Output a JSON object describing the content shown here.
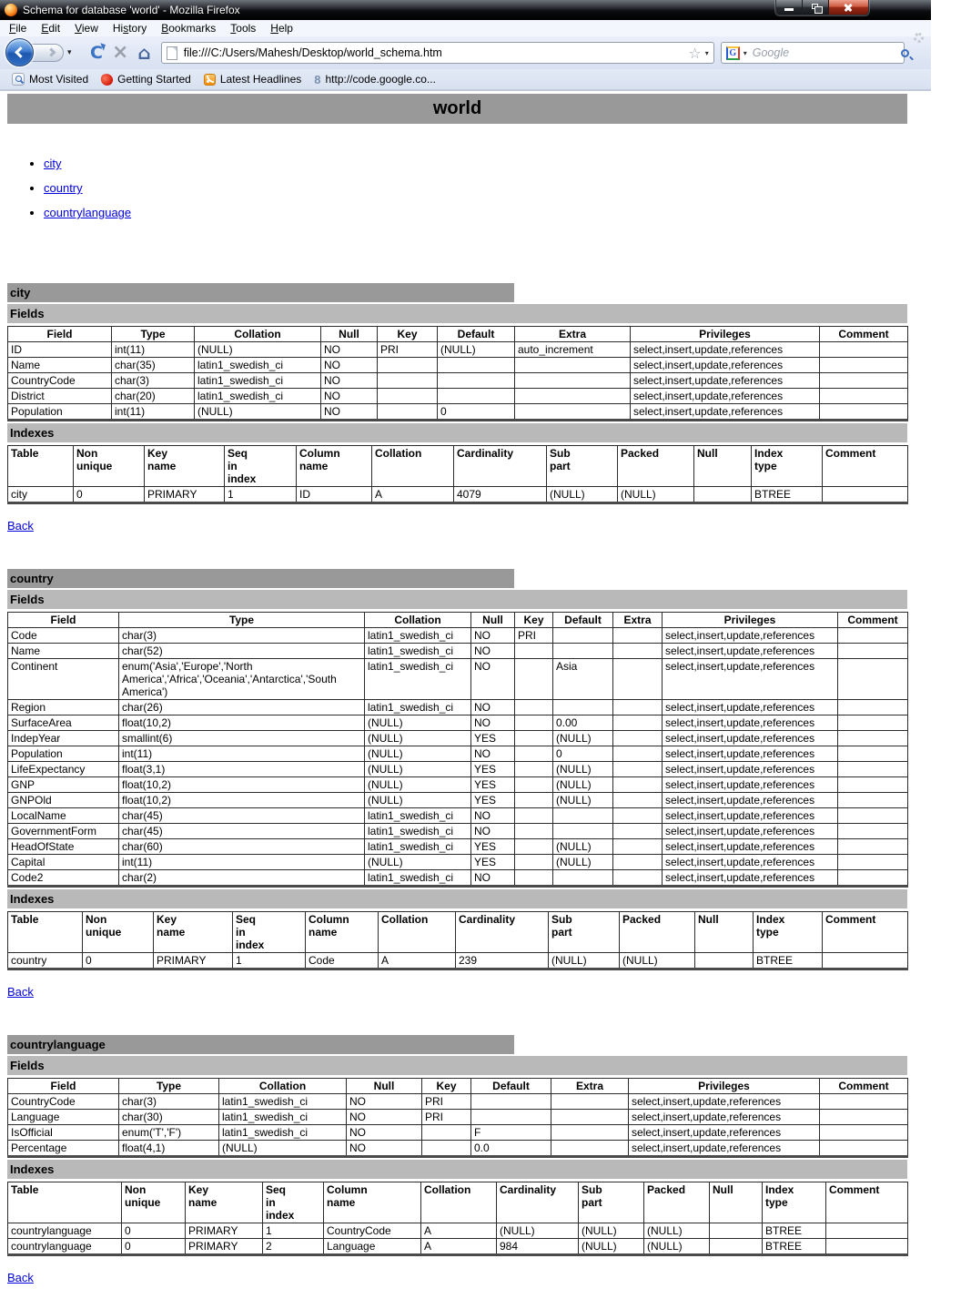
{
  "browser": {
    "title": "Schema for database 'world' - Mozilla Firefox",
    "menu": [
      {
        "pre": "",
        "accel": "F",
        "post": "ile"
      },
      {
        "pre": "",
        "accel": "E",
        "post": "dit"
      },
      {
        "pre": "",
        "accel": "V",
        "post": "iew"
      },
      {
        "pre": "Hi",
        "accel": "s",
        "post": "tory"
      },
      {
        "pre": "",
        "accel": "B",
        "post": "ookmarks"
      },
      {
        "pre": "",
        "accel": "T",
        "post": "ools"
      },
      {
        "pre": "",
        "accel": "H",
        "post": "elp"
      }
    ],
    "url": "file:///C:/Users/Mahesh/Desktop/world_schema.htm",
    "search_placeholder": "Google",
    "search_engine_letter": "G",
    "gcode_favicon_glyph": "8",
    "refresh_glyph": "C",
    "stop_glyph": "×",
    "home_glyph": "⌂",
    "star_glyph": "☆",
    "caret_glyph": "▾",
    "bookmarks": [
      "Most Visited",
      "Getting Started",
      "Latest Headlines",
      "http://code.google.co..."
    ]
  },
  "page": {
    "title": "world",
    "toc": [
      "city",
      "country",
      "countrylanguage"
    ],
    "fields_label": "Fields",
    "indexes_label": "Indexes",
    "back_label": "Back",
    "fields_headers": [
      "Field",
      "Type",
      "Collation",
      "Null",
      "Key",
      "Default",
      "Extra",
      "Privileges",
      "Comment"
    ],
    "index_headers": [
      "Table",
      "Non\nunique",
      "Key\nname",
      "Seq\nin\nindex",
      "Column\nname",
      "Collation",
      "Cardinality",
      "Sub\npart",
      "Packed",
      "Null",
      "Index\ntype",
      "Comment"
    ],
    "sections": [
      {
        "name": "city",
        "fields": [
          [
            "ID",
            "int(11)",
            "(NULL)",
            "NO",
            "PRI",
            "(NULL)",
            "auto_increment",
            "select,insert,update,references",
            ""
          ],
          [
            "Name",
            "char(35)",
            "latin1_swedish_ci",
            "NO",
            "",
            "",
            "",
            "select,insert,update,references",
            ""
          ],
          [
            "CountryCode",
            "char(3)",
            "latin1_swedish_ci",
            "NO",
            "",
            "",
            "",
            "select,insert,update,references",
            ""
          ],
          [
            "District",
            "char(20)",
            "latin1_swedish_ci",
            "NO",
            "",
            "",
            "",
            "select,insert,update,references",
            ""
          ],
          [
            "Population",
            "int(11)",
            "(NULL)",
            "NO",
            "",
            "0",
            "",
            "select,insert,update,references",
            ""
          ]
        ],
        "indexes": [
          [
            "city",
            "0",
            "PRIMARY",
            "1",
            "ID",
            "A",
            "4079",
            "(NULL)",
            "(NULL)",
            "",
            "BTREE",
            ""
          ]
        ]
      },
      {
        "name": "country",
        "fields": [
          [
            "Code",
            "char(3)",
            "latin1_swedish_ci",
            "NO",
            "PRI",
            "",
            "",
            "select,insert,update,references",
            ""
          ],
          [
            "Name",
            "char(52)",
            "latin1_swedish_ci",
            "NO",
            "",
            "",
            "",
            "select,insert,update,references",
            ""
          ],
          [
            "Continent",
            "enum('Asia','Europe','North America','Africa','Oceania','Antarctica','South America')",
            "latin1_swedish_ci",
            "NO",
            "",
            "Asia",
            "",
            "select,insert,update,references",
            ""
          ],
          [
            "Region",
            "char(26)",
            "latin1_swedish_ci",
            "NO",
            "",
            "",
            "",
            "select,insert,update,references",
            ""
          ],
          [
            "SurfaceArea",
            "float(10,2)",
            "(NULL)",
            "NO",
            "",
            "0.00",
            "",
            "select,insert,update,references",
            ""
          ],
          [
            "IndepYear",
            "smallint(6)",
            "(NULL)",
            "YES",
            "",
            "(NULL)",
            "",
            "select,insert,update,references",
            ""
          ],
          [
            "Population",
            "int(11)",
            "(NULL)",
            "NO",
            "",
            "0",
            "",
            "select,insert,update,references",
            ""
          ],
          [
            "LifeExpectancy",
            "float(3,1)",
            "(NULL)",
            "YES",
            "",
            "(NULL)",
            "",
            "select,insert,update,references",
            ""
          ],
          [
            "GNP",
            "float(10,2)",
            "(NULL)",
            "YES",
            "",
            "(NULL)",
            "",
            "select,insert,update,references",
            ""
          ],
          [
            "GNPOld",
            "float(10,2)",
            "(NULL)",
            "YES",
            "",
            "(NULL)",
            "",
            "select,insert,update,references",
            ""
          ],
          [
            "LocalName",
            "char(45)",
            "latin1_swedish_ci",
            "NO",
            "",
            "",
            "",
            "select,insert,update,references",
            ""
          ],
          [
            "GovernmentForm",
            "char(45)",
            "latin1_swedish_ci",
            "NO",
            "",
            "",
            "",
            "select,insert,update,references",
            ""
          ],
          [
            "HeadOfState",
            "char(60)",
            "latin1_swedish_ci",
            "YES",
            "",
            "(NULL)",
            "",
            "select,insert,update,references",
            ""
          ],
          [
            "Capital",
            "int(11)",
            "(NULL)",
            "YES",
            "",
            "(NULL)",
            "",
            "select,insert,update,references",
            ""
          ],
          [
            "Code2",
            "char(2)",
            "latin1_swedish_ci",
            "NO",
            "",
            "",
            "",
            "select,insert,update,references",
            ""
          ]
        ],
        "indexes": [
          [
            "country",
            "0",
            "PRIMARY",
            "1",
            "Code",
            "A",
            "239",
            "(NULL)",
            "(NULL)",
            "",
            "BTREE",
            ""
          ]
        ]
      },
      {
        "name": "countrylanguage",
        "fields": [
          [
            "CountryCode",
            "char(3)",
            "latin1_swedish_ci",
            "NO",
            "PRI",
            "",
            "",
            "select,insert,update,references",
            ""
          ],
          [
            "Language",
            "char(30)",
            "latin1_swedish_ci",
            "NO",
            "PRI",
            "",
            "",
            "select,insert,update,references",
            ""
          ],
          [
            "IsOfficial",
            "enum('T','F')",
            "latin1_swedish_ci",
            "NO",
            "",
            "F",
            "",
            "select,insert,update,references",
            ""
          ],
          [
            "Percentage",
            "float(4,1)",
            "(NULL)",
            "NO",
            "",
            "0.0",
            "",
            "select,insert,update,references",
            ""
          ]
        ],
        "indexes": [
          [
            "countrylanguage",
            "0",
            "PRIMARY",
            "1",
            "CountryCode",
            "A",
            "(NULL)",
            "(NULL)",
            "(NULL)",
            "",
            "BTREE",
            ""
          ],
          [
            "countrylanguage",
            "0",
            "PRIMARY",
            "2",
            "Language",
            "A",
            "984",
            "(NULL)",
            "(NULL)",
            "",
            "BTREE",
            ""
          ]
        ]
      }
    ]
  }
}
